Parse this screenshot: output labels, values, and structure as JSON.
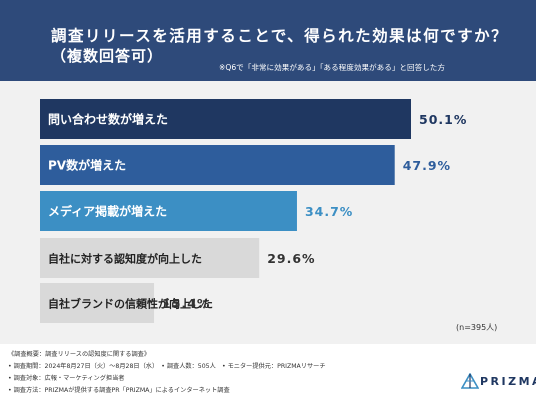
{
  "header": {
    "title_line1": "調査リリースを活用することで、得られた効果は何ですか？",
    "title_line2": "（複数回答可）",
    "note": "※Q6で「非常に効果がある」「ある程度効果がある」と回答した方"
  },
  "colors": {
    "header_bg": "#2e4a7a",
    "bar_1": "#1f3761",
    "bar_2": "#2e5d9c",
    "bar_3": "#3c8fc4",
    "bar_other": "#d9d9d9",
    "panel_bg": "#f1f1f1"
  },
  "chart_data": {
    "type": "bar",
    "orientation": "horizontal",
    "categories": [
      "問い合わせ数が増えた",
      "PV数が増えた",
      "メディア掲載が増えた",
      "自社に対する認知度が向上した",
      "自社ブランドの信頼性が向上した"
    ],
    "values": [
      50.1,
      47.9,
      34.7,
      29.6,
      15.4
    ],
    "value_labels": [
      "50.1%",
      "47.9%",
      "34.7%",
      "29.6%",
      "15.4%"
    ],
    "xlim": [
      0,
      50.1
    ],
    "grid": false,
    "sample_label": "(n=395人)"
  },
  "footer": {
    "lines": [
      "《調査概要：調査リリースの認知度に関する調査》",
      "• 調査期間：2024年8月27日（火）〜8月28日（水）　• 調査人数：505人　• モニター提供元：PRIZMAリサーチ",
      "• 調査対象：広報・マーケティング担当者",
      "• 調査方法：PRIZMAが提供する調査PR「PRIZMA」によるインターネット調査"
    ],
    "logo_text": "PRIZMA",
    "logo_icon": "prizma-triangle-icon"
  }
}
